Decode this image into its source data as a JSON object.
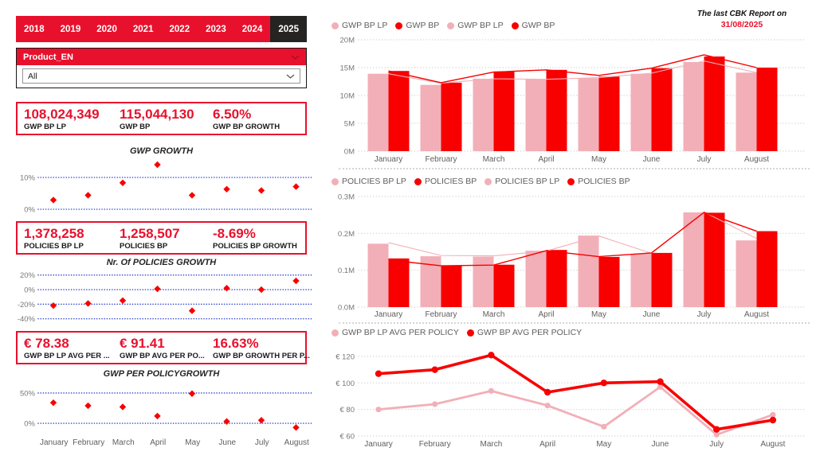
{
  "colors": {
    "brand_red": "#E8112D",
    "chart_red": "#F80000",
    "chart_pink": "#F2AFB8",
    "selected_tab_bg": "#252423",
    "scatter_grid_blue": "#3D52D5",
    "grid_gray": "#D8D8D8",
    "axis_text": "#777777",
    "legend_text": "#605E5C"
  },
  "icons": {
    "slicer_chevron": "chevron-down",
    "dropdown_chevron": "chevron-down"
  },
  "year_tabs": {
    "years": [
      "2018",
      "2019",
      "2020",
      "2021",
      "2022",
      "2023",
      "2024",
      "2025"
    ],
    "selected": "2025"
  },
  "slicer": {
    "title": "Product_EN",
    "value": "All"
  },
  "kpi_cards": [
    {
      "items": [
        {
          "value": "108,024,349",
          "label": "GWP BP LP"
        },
        {
          "value": "115,044,130",
          "label": "GWP BP"
        },
        {
          "value": "6.50%",
          "label": "GWP BP GROWTH"
        }
      ]
    },
    {
      "items": [
        {
          "value": "1,378,258",
          "label": "POLICIES BP LP"
        },
        {
          "value": "1,258,507",
          "label": "POLICIES BP"
        },
        {
          "value": "-8.69%",
          "label": "POLICIES BP GROWTH"
        }
      ]
    },
    {
      "items": [
        {
          "value": "€ 78.38",
          "label": "GWP BP LP AVG PER ..."
        },
        {
          "value": "€ 91.41",
          "label": "GWP BP AVG PER PO..."
        },
        {
          "value": "16.63%",
          "label": "GWP BP GROWTH PER P..."
        }
      ]
    }
  ],
  "report_note": {
    "line1": "The last CBK Report on",
    "line2": "31/08/2025"
  },
  "months": [
    "January",
    "February",
    "March",
    "April",
    "May",
    "June",
    "July",
    "August"
  ],
  "chart_data": [
    {
      "id": "gwp_growth",
      "type": "scatter",
      "title": "GWP GROWTH",
      "unit": "%",
      "categories": [
        "January",
        "February",
        "March",
        "April",
        "May",
        "June",
        "July",
        "August"
      ],
      "values": [
        2.9,
        4.4,
        8.3,
        14.0,
        4.4,
        6.3,
        5.9,
        7.1
      ],
      "yticks": [
        {
          "label": "10%",
          "v": 10
        },
        {
          "label": "0%",
          "v": 0
        }
      ],
      "ylim": [
        -2.5,
        15
      ],
      "grid": "dotted-blue",
      "point_color": "red"
    },
    {
      "id": "policies_growth",
      "type": "scatter",
      "title": "Nr. Of POLICIES GROWTH",
      "unit": "%",
      "categories": [
        "January",
        "February",
        "March",
        "April",
        "May",
        "June",
        "July",
        "August"
      ],
      "values": [
        -22,
        -19,
        -15,
        1,
        -29,
        2,
        0,
        12
      ],
      "yticks": [
        {
          "label": "20%",
          "v": 20
        },
        {
          "label": "0%",
          "v": 0
        },
        {
          "label": "-20%",
          "v": -20
        },
        {
          "label": "-40%",
          "v": -40
        }
      ],
      "ylim": [
        -48,
        28.4
      ],
      "grid": "dotted-blue",
      "point_color": "red"
    },
    {
      "id": "gwp_per_policy_growth",
      "type": "scatter",
      "title": "GWP PER POLICYGROWTH",
      "unit": "%",
      "categories": [
        "January",
        "February",
        "March",
        "April",
        "May",
        "June",
        "July",
        "August"
      ],
      "values": [
        34,
        29,
        27,
        12,
        49,
        3,
        5,
        -7
      ],
      "yticks": [
        {
          "label": "50%",
          "v": 50
        },
        {
          "label": "0%",
          "v": 0
        }
      ],
      "ylim": [
        -21,
        71
      ],
      "grid": "dotted-blue",
      "point_color": "red"
    },
    {
      "id": "gwp_monthly",
      "type": "bar",
      "unit": "M",
      "categories": [
        "January",
        "February",
        "March",
        "April",
        "May",
        "June",
        "July",
        "August"
      ],
      "legend": [
        {
          "label": "GWP BP LP",
          "color": "pink"
        },
        {
          "label": "GWP BP",
          "color": "red"
        },
        {
          "label": "GWP BP LP",
          "color": "pink"
        },
        {
          "label": "GWP BP",
          "color": "red"
        }
      ],
      "series": [
        {
          "name": "GWP BP LP",
          "render": "bar",
          "color": "pink",
          "values": [
            13.9,
            11.9,
            13.0,
            12.9,
            13.1,
            13.9,
            16.0,
            14.1
          ]
        },
        {
          "name": "GWP BP",
          "render": "bar",
          "color": "red",
          "values": [
            14.4,
            12.3,
            14.3,
            14.6,
            13.4,
            14.9,
            17.0,
            15.0
          ]
        },
        {
          "name": "GWP BP LP",
          "render": "line",
          "color": "pink",
          "values": [
            13.9,
            12.2,
            13.0,
            12.9,
            13.2,
            14.0,
            16.2,
            14.1
          ]
        },
        {
          "name": "GWP BP",
          "render": "line",
          "color": "red",
          "values": [
            14.4,
            12.3,
            14.2,
            14.6,
            13.6,
            14.9,
            17.3,
            15.0
          ]
        }
      ],
      "yticks": [
        {
          "label": "20M",
          "v": 20
        },
        {
          "label": "15M",
          "v": 15
        },
        {
          "label": "10M",
          "v": 10
        },
        {
          "label": "5M",
          "v": 5
        },
        {
          "label": "0M",
          "v": 0
        }
      ],
      "ylim": [
        0,
        20
      ],
      "grid": "dotted-gray",
      "legend_position": "top"
    },
    {
      "id": "policies_monthly",
      "type": "bar",
      "unit": "M",
      "categories": [
        "January",
        "February",
        "March",
        "April",
        "May",
        "June",
        "July",
        "August"
      ],
      "legend": [
        {
          "label": "POLICIES BP LP",
          "color": "pink"
        },
        {
          "label": "POLICIES BP",
          "color": "red"
        },
        {
          "label": "POLICIES BP LP",
          "color": "pink"
        },
        {
          "label": "POLICIES BP",
          "color": "red"
        }
      ],
      "series": [
        {
          "name": "POLICIES BP LP",
          "render": "bar",
          "color": "pink",
          "values": [
            0.172,
            0.138,
            0.137,
            0.153,
            0.194,
            0.145,
            0.257,
            0.181
          ]
        },
        {
          "name": "POLICIES BP",
          "render": "bar",
          "color": "red",
          "values": [
            0.132,
            0.113,
            0.115,
            0.155,
            0.136,
            0.147,
            0.256,
            0.206
          ]
        },
        {
          "name": "POLICIES BP LP",
          "render": "line",
          "color": "pink",
          "values": [
            0.175,
            0.14,
            0.139,
            0.152,
            0.193,
            0.146,
            0.258,
            0.186
          ]
        },
        {
          "name": "POLICIES BP",
          "render": "line",
          "color": "red",
          "values": [
            0.128,
            0.112,
            0.114,
            0.153,
            0.137,
            0.147,
            0.257,
            0.206
          ]
        }
      ],
      "yticks": [
        {
          "label": "0.3M",
          "v": 0.3
        },
        {
          "label": "0.2M",
          "v": 0.2
        },
        {
          "label": "0.1M",
          "v": 0.1
        },
        {
          "label": "0.0M",
          "v": 0
        }
      ],
      "ylim": [
        0,
        0.3
      ],
      "grid": "dotted-gray",
      "legend_position": "top"
    },
    {
      "id": "avg_per_policy_monthly",
      "type": "line",
      "unit": "€",
      "markers": true,
      "categories": [
        "January",
        "February",
        "March",
        "April",
        "May",
        "June",
        "July",
        "August"
      ],
      "legend": [
        {
          "label": "GWP BP LP AVG PER POLICY",
          "color": "pink"
        },
        {
          "label": "GWP BP AVG PER POLICY",
          "color": "red"
        }
      ],
      "series": [
        {
          "name": "GWP BP LP AVG PER POLICY",
          "render": "line",
          "color": "pink",
          "values": [
            80,
            84,
            94,
            83,
            67,
            97,
            61,
            76
          ]
        },
        {
          "name": "GWP BP AVG PER POLICY",
          "render": "line",
          "color": "red",
          "values": [
            107,
            110,
            121,
            93,
            100,
            101,
            65,
            72
          ]
        }
      ],
      "yticks": [
        {
          "label": "€ 120",
          "v": 120
        },
        {
          "label": "€ 100",
          "v": 100
        },
        {
          "label": "€ 80",
          "v": 80
        },
        {
          "label": "€ 60",
          "v": 60
        }
      ],
      "ylim": [
        60,
        120
      ],
      "grid": "dotted-gray",
      "legend_position": "top"
    }
  ]
}
